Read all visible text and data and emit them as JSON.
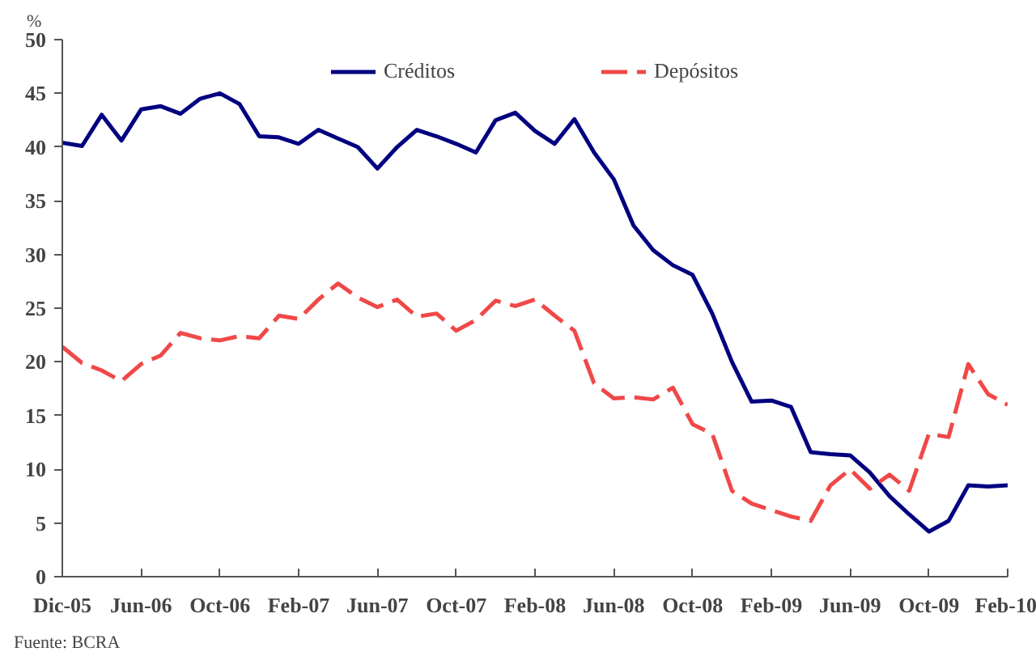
{
  "chart_data": {
    "type": "line",
    "ylabel": "%",
    "categories": [
      "Dic-05",
      null,
      null,
      null,
      "Jun-06",
      null,
      null,
      null,
      "Oct-06",
      null,
      null,
      null,
      "Feb-07",
      null,
      null,
      null,
      "Jun-07",
      null,
      null,
      null,
      "Oct-07",
      null,
      null,
      null,
      "Feb-08",
      null,
      null,
      null,
      "Jun-08",
      null,
      null,
      null,
      "Oct-08",
      null,
      null,
      null,
      "Feb-09",
      null,
      null,
      null,
      "Jun-09",
      null,
      null,
      null,
      "Oct-09",
      null,
      null,
      null,
      "Feb-10"
    ],
    "series": [
      {
        "name": "Créditos",
        "color": "#000080",
        "line_style": "solid",
        "values": [
          40.4,
          40.1,
          43.0,
          40.6,
          43.5,
          43.8,
          43.1,
          44.5,
          45.0,
          44.0,
          41.0,
          40.9,
          40.3,
          41.6,
          40.8,
          40.0,
          38.0,
          40.0,
          41.6,
          41.0,
          40.3,
          39.5,
          42.5,
          43.2,
          41.5,
          40.3,
          42.6,
          39.5,
          37.0,
          32.7,
          30.4,
          29.0,
          28.1,
          24.5,
          20.0,
          16.3,
          16.4,
          15.8,
          11.6,
          11.4,
          11.3,
          9.7,
          7.5,
          5.8,
          4.2,
          5.2,
          8.5,
          8.4,
          8.5
        ]
      },
      {
        "name": "Depósitos",
        "color": "#f04848",
        "line_style": "dashed",
        "values": [
          21.4,
          19.9,
          19.2,
          18.2,
          19.8,
          20.6,
          22.7,
          22.2,
          22.0,
          22.4,
          22.2,
          24.3,
          24.0,
          25.8,
          27.3,
          26.0,
          25.1,
          25.8,
          24.2,
          24.5,
          22.9,
          23.9,
          25.7,
          25.2,
          25.8,
          24.3,
          22.9,
          18.0,
          16.6,
          16.7,
          16.5,
          17.6,
          14.2,
          13.3,
          8.0,
          6.8,
          6.2,
          5.6,
          5.2,
          8.5,
          10.0,
          8.2,
          9.5,
          8.0,
          13.3,
          13.0,
          19.8,
          17.0,
          16.0
        ]
      }
    ],
    "ylim": [
      0,
      50
    ],
    "yticks": [
      0,
      5,
      10,
      15,
      20,
      25,
      30,
      35,
      40,
      45,
      50
    ],
    "grid": false,
    "legend": "top",
    "annotations": [
      "Fuente: BCRA"
    ]
  }
}
